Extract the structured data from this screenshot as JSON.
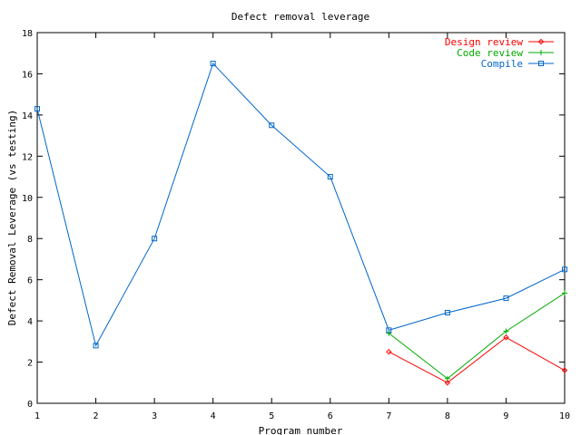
{
  "chart_data": {
    "type": "line",
    "title": "Defect removal leverage",
    "xlabel": "Program number",
    "ylabel": "Defect Removal Leverage (vs testing)",
    "xlim": [
      1,
      10
    ],
    "ylim": [
      0,
      18
    ],
    "xticks": [
      1,
      2,
      3,
      4,
      5,
      6,
      7,
      8,
      9,
      10
    ],
    "yticks": [
      0,
      2,
      4,
      6,
      8,
      10,
      12,
      14,
      16,
      18
    ],
    "grid": false,
    "legend_position": "top-right",
    "series": [
      {
        "name": "Design review",
        "color": "#ff0000",
        "marker": "diamond",
        "x": [
          7,
          8,
          9,
          10
        ],
        "y": [
          2.5,
          1.0,
          3.2,
          1.6
        ]
      },
      {
        "name": "Code review",
        "color": "#00aa00",
        "marker": "plus",
        "x": [
          7,
          8,
          9,
          10
        ],
        "y": [
          3.4,
          1.2,
          3.5,
          5.35
        ]
      },
      {
        "name": "Compile",
        "color": "#0066cc",
        "marker": "square",
        "x": [
          1,
          2,
          3,
          4,
          5,
          6,
          7,
          8,
          9,
          10
        ],
        "y": [
          14.3,
          2.8,
          8.0,
          16.5,
          13.5,
          11.0,
          3.55,
          4.4,
          5.1,
          6.5
        ]
      }
    ]
  }
}
